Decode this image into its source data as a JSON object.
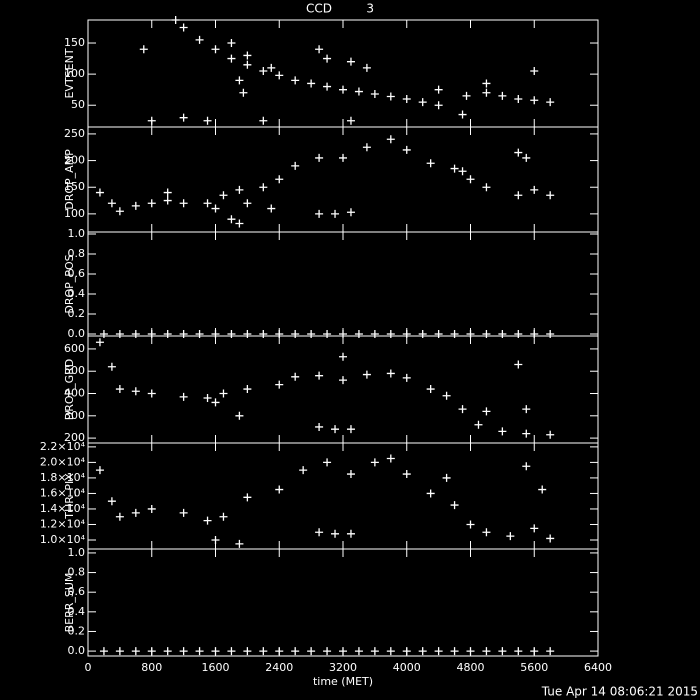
{
  "title": "CCD         3",
  "timestamp": "Tue Apr 14 08:06:21 2015",
  "chart_data": [
    {
      "type": "scatter",
      "ylabel": "EVTSENT",
      "color": "#ffffff",
      "ylim": [
        15,
        187
      ],
      "yticks": [
        50,
        100,
        150
      ],
      "x": [
        1100,
        1200,
        1400,
        1600,
        1800,
        2000,
        2200,
        2400,
        2600,
        2800,
        3000,
        3200,
        3400,
        3600,
        3800,
        4000,
        4200,
        4400,
        4700,
        4750,
        5000,
        5200,
        5400,
        5600,
        5800,
        700,
        800,
        1200,
        1500,
        1800,
        1900,
        1950,
        2000,
        2200,
        2300,
        2900,
        3000,
        3300,
        3300,
        3500,
        4400,
        5000,
        5600
      ],
      "values": [
        187,
        175,
        155,
        140,
        125,
        115,
        105,
        98,
        90,
        85,
        80,
        75,
        72,
        68,
        64,
        60,
        55,
        50,
        35,
        65,
        70,
        65,
        60,
        58,
        55,
        140,
        25,
        30,
        25,
        150,
        90,
        70,
        130,
        25,
        110,
        140,
        125,
        25,
        120,
        110,
        75,
        85,
        105
      ]
    },
    {
      "type": "scatter",
      "ylabel": "DROP_AMP",
      "color": "#ffffff",
      "ylim": [
        66,
        263
      ],
      "yticks": [
        100,
        150,
        200,
        250
      ],
      "x": [
        150,
        300,
        400,
        600,
        800,
        1000,
        1200,
        1500,
        1600,
        1700,
        1900,
        2200,
        2400,
        2600,
        2900,
        3200,
        3500,
        3800,
        4000,
        4300,
        4600,
        4800,
        5000,
        5400,
        5600,
        5800,
        1800,
        1900,
        2000,
        2300,
        2900,
        3100,
        3300,
        4700,
        5400,
        5500,
        1000
      ],
      "values": [
        140,
        120,
        105,
        115,
        120,
        125,
        120,
        120,
        110,
        135,
        145,
        150,
        165,
        190,
        205,
        205,
        225,
        240,
        220,
        195,
        185,
        165,
        150,
        135,
        145,
        135,
        90,
        82,
        120,
        110,
        100,
        100,
        103,
        180,
        215,
        205,
        140
      ]
    },
    {
      "type": "scatter",
      "ylabel": "DROP_POS",
      "color": "#ffffff",
      "ylim": [
        -0.02,
        1.02
      ],
      "yticks": [
        {
          "value": 0,
          "label": "0.0"
        },
        {
          "value": 0.2,
          "label": "0.2"
        },
        {
          "value": 0.4,
          "label": "0.4"
        },
        {
          "value": 0.6,
          "label": "0.6"
        },
        {
          "value": 0.8,
          "label": "0.8"
        },
        {
          "value": 1,
          "label": "1.0"
        }
      ],
      "x": [
        200,
        400,
        600,
        800,
        1000,
        1200,
        1400,
        1600,
        1800,
        2000,
        2200,
        2400,
        2600,
        2800,
        3000,
        3200,
        3400,
        3600,
        3800,
        4000,
        4200,
        4400,
        4600,
        4800,
        5000,
        5200,
        5400,
        5600,
        5800
      ],
      "values": [
        0,
        0,
        0,
        0,
        0,
        0,
        0,
        0,
        0,
        0,
        0,
        0,
        0,
        0,
        0,
        0,
        0,
        0,
        0,
        0,
        0,
        0,
        0,
        0,
        0,
        0,
        0,
        0,
        0
      ]
    },
    {
      "type": "scatter",
      "ylabel": "DROP_GRD",
      "color": "#ffffff",
      "ylim": [
        178,
        658
      ],
      "yticks": [
        200,
        300,
        400,
        500,
        600
      ],
      "x": [
        150,
        300,
        400,
        600,
        800,
        1200,
        1500,
        1600,
        1700,
        2000,
        2400,
        2600,
        2900,
        3200,
        3500,
        3800,
        4000,
        4300,
        4500,
        4700,
        4900,
        5200,
        5500,
        5800,
        2900,
        3100,
        3300,
        3200,
        5400,
        5500,
        5000,
        1900
      ],
      "values": [
        630,
        520,
        420,
        410,
        400,
        385,
        380,
        360,
        400,
        420,
        440,
        475,
        480,
        460,
        485,
        490,
        470,
        420,
        390,
        330,
        260,
        230,
        220,
        215,
        250,
        240,
        240,
        565,
        530,
        330,
        320,
        300
      ]
    },
    {
      "type": "scatter",
      "ylabel": "THR_PIX",
      "color": "#ffffff",
      "ylim": [
        8840,
        22500
      ],
      "yticks": [
        {
          "value": 10000,
          "label": "1.0×10⁴"
        },
        {
          "value": 12000,
          "label": "1.2×10⁴"
        },
        {
          "value": 14000,
          "label": "1.4×10⁴"
        },
        {
          "value": 16000,
          "label": "1.6×10⁴"
        },
        {
          "value": 18000,
          "label": "1.8×10⁴"
        },
        {
          "value": 20000,
          "label": "2.0×10⁴"
        },
        {
          "value": 22000,
          "label": "2.2×10⁴"
        }
      ],
      "x": [
        150,
        300,
        400,
        600,
        800,
        1200,
        1500,
        1600,
        1700,
        2000,
        2400,
        2700,
        3000,
        3300,
        3600,
        3800,
        4000,
        4300,
        4600,
        4800,
        5000,
        5300,
        5600,
        5800,
        2900,
        3100,
        3300,
        5500,
        5700,
        1900,
        4500
      ],
      "values": [
        19000,
        15000,
        13000,
        13500,
        14000,
        13500,
        12500,
        10000,
        13000,
        15500,
        16500,
        19000,
        20000,
        18500,
        20000,
        20500,
        18500,
        16000,
        14500,
        12000,
        11000,
        10500,
        11500,
        10200,
        11000,
        10800,
        10800,
        19500,
        16500,
        9500,
        18000
      ]
    },
    {
      "type": "scatter",
      "ylabel": "BERR_SUM",
      "color": "#ffffff",
      "ylim": [
        -0.05,
        1.04
      ],
      "yticks": [
        {
          "value": 0,
          "label": "0.0"
        },
        {
          "value": 0.2,
          "label": "0.2"
        },
        {
          "value": 0.4,
          "label": "0.4"
        },
        {
          "value": 0.6,
          "label": "0.6"
        },
        {
          "value": 0.8,
          "label": "0.8"
        },
        {
          "value": 1,
          "label": "1.0"
        }
      ],
      "xlabel": "time (MET)",
      "xlim": [
        0,
        6400
      ],
      "xticks": [
        0,
        800,
        1600,
        2400,
        3200,
        4000,
        4800,
        5600,
        6400
      ],
      "x": [
        200,
        400,
        600,
        800,
        1000,
        1200,
        1400,
        1600,
        1800,
        2000,
        2200,
        2400,
        2600,
        2800,
        3000,
        3200,
        3400,
        3600,
        3800,
        4000,
        4200,
        4400,
        4600,
        4800,
        5000,
        5200,
        5400,
        5600,
        5800
      ],
      "values": [
        0,
        0,
        0,
        0,
        0,
        0,
        0,
        0,
        0,
        0,
        0,
        0,
        0,
        0,
        0,
        0,
        0,
        0,
        0,
        0,
        0,
        0,
        0,
        0,
        0,
        0,
        0,
        0,
        0
      ]
    }
  ]
}
